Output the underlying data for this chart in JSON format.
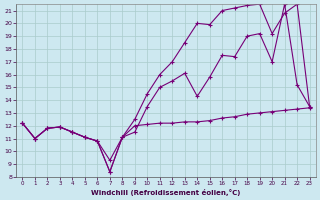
{
  "xlabel": "Windchill (Refroidissement éolien,°C)",
  "background_color": "#cde8f0",
  "line_color": "#770077",
  "grid_color": "#aacccc",
  "xlim": [
    -0.5,
    23.5
  ],
  "ylim": [
    8,
    21.5
  ],
  "xticks": [
    0,
    1,
    2,
    3,
    4,
    5,
    6,
    7,
    8,
    9,
    10,
    11,
    12,
    13,
    14,
    15,
    16,
    17,
    18,
    19,
    20,
    21,
    22,
    23
  ],
  "yticks": [
    8,
    9,
    10,
    11,
    12,
    13,
    14,
    15,
    16,
    17,
    18,
    19,
    20,
    21
  ],
  "line1_x": [
    0,
    1,
    2,
    3,
    4,
    5,
    6,
    7,
    8,
    9,
    10,
    11,
    12,
    13,
    14,
    15,
    16,
    17,
    18,
    19,
    20,
    21,
    22,
    23
  ],
  "line1_y": [
    12.2,
    11.0,
    11.8,
    11.9,
    11.5,
    11.1,
    10.8,
    9.3,
    11.1,
    12.0,
    12.1,
    12.2,
    12.2,
    12.3,
    12.3,
    12.4,
    12.6,
    12.7,
    12.9,
    13.0,
    13.1,
    13.2,
    13.3,
    13.4
  ],
  "line2_x": [
    0,
    1,
    2,
    3,
    4,
    5,
    6,
    7,
    8,
    9,
    10,
    11,
    12,
    13,
    14,
    15,
    16,
    17,
    18,
    19,
    20,
    21,
    22,
    23
  ],
  "line2_y": [
    12.2,
    11.0,
    11.8,
    11.9,
    11.5,
    11.1,
    10.8,
    8.4,
    11.1,
    11.5,
    13.5,
    15.0,
    15.5,
    16.1,
    14.3,
    15.8,
    17.5,
    17.4,
    19.0,
    19.2,
    17.0,
    21.5,
    15.2,
    13.5
  ],
  "line3_x": [
    0,
    1,
    2,
    3,
    4,
    5,
    6,
    7,
    8,
    9,
    10,
    11,
    12,
    13,
    14,
    15,
    16,
    17,
    18,
    19,
    20,
    21,
    22,
    23
  ],
  "line3_y": [
    12.2,
    11.0,
    11.8,
    11.9,
    11.5,
    11.1,
    10.8,
    8.4,
    11.1,
    12.5,
    14.5,
    16.0,
    17.0,
    18.5,
    20.0,
    19.9,
    21.0,
    21.2,
    21.4,
    21.5,
    19.2,
    20.8,
    21.5,
    13.5
  ]
}
